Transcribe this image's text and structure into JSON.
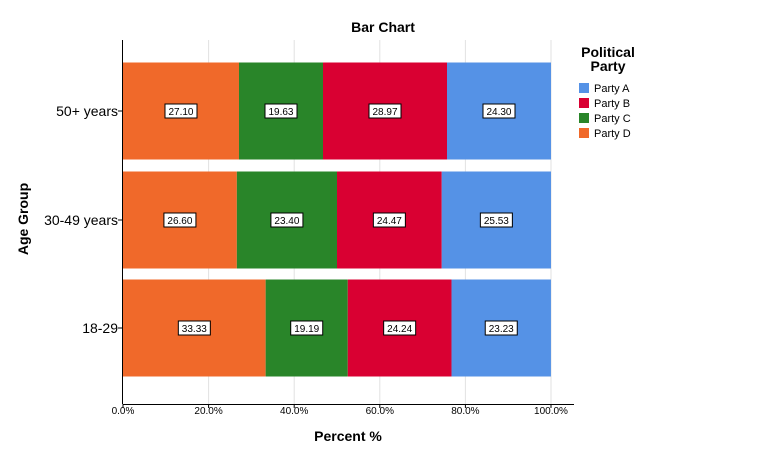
{
  "chart_data": {
    "type": "bar",
    "orientation": "horizontal",
    "stacked": true,
    "title": "Bar Chart",
    "xlabel": "Percent %",
    "ylabel": "Age Group",
    "xlim": [
      0,
      100
    ],
    "x_ticks": [
      "0.0%",
      "20.0%",
      "40.0%",
      "60.0%",
      "80.0%",
      "100.0%"
    ],
    "grid": "vertical",
    "legend": {
      "title_lines": [
        "Political",
        "Party"
      ],
      "placement": "right",
      "entries": [
        "Party A",
        "Party B",
        "Party C",
        "Party D"
      ]
    },
    "categories": [
      "50+ years",
      "30-49 years",
      "18-29"
    ],
    "stack_order": [
      "Party D",
      "Party C",
      "Party B",
      "Party A"
    ],
    "series": [
      {
        "name": "Party A",
        "color": "#5592E6",
        "values": [
          24.3,
          25.53,
          23.23
        ],
        "labels": [
          "24.30",
          "25.53",
          "23.23"
        ]
      },
      {
        "name": "Party B",
        "color": "#D90032",
        "values": [
          28.97,
          24.47,
          24.24
        ],
        "labels": [
          "28.97",
          "24.47",
          "24.24"
        ]
      },
      {
        "name": "Party C",
        "color": "#298529",
        "values": [
          19.63,
          23.4,
          19.19
        ],
        "labels": [
          "19.63",
          "23.40",
          "19.19"
        ]
      },
      {
        "name": "Party D",
        "color": "#F0692A",
        "values": [
          27.1,
          26.6,
          33.33
        ],
        "labels": [
          "27.10",
          "26.60",
          "33.33"
        ]
      }
    ]
  }
}
